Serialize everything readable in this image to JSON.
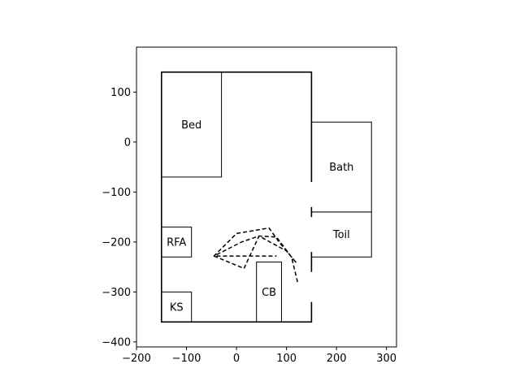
{
  "chart_data": {
    "type": "floor-plan",
    "xlim": [
      -200,
      320
    ],
    "ylim": [
      -410,
      190
    ],
    "x_ticks": [
      -200,
      -100,
      0,
      100,
      200,
      300
    ],
    "y_ticks": [
      -400,
      -300,
      -200,
      -100,
      0,
      100
    ],
    "x_tick_labels": [
      "−200",
      "−100",
      "0",
      "100",
      "200",
      "300"
    ],
    "y_tick_labels": [
      "−400",
      "−300",
      "−200",
      "−100",
      "0",
      "100"
    ],
    "outer_room": {
      "x0": -150,
      "y0": -360,
      "x1": 150,
      "y1": 140
    },
    "door_gaps": [
      {
        "x": 150,
        "y0": -130,
        "y1": -80
      },
      {
        "x": 150,
        "y0": -220,
        "y1": -150
      },
      {
        "x": 150,
        "y0": -320,
        "y1": -260
      }
    ],
    "furniture": [
      {
        "label": "Bed",
        "x0": -150,
        "y0": -70,
        "x1": -30,
        "y1": 140
      },
      {
        "label": "Bath",
        "x0": 150,
        "y0": -140,
        "x1": 270,
        "y1": 40
      },
      {
        "label": "Toil",
        "x0": 150,
        "y0": -230,
        "x1": 270,
        "y1": -140
      },
      {
        "label": "RFA",
        "x0": -150,
        "y0": -230,
        "x1": -90,
        "y1": -170
      },
      {
        "label": "CB",
        "x0": 40,
        "y0": -360,
        "x1": 90,
        "y1": -240
      },
      {
        "label": "KS",
        "x0": -150,
        "y0": -360,
        "x1": -90,
        "y1": -300
      }
    ],
    "path": [
      [
        122,
        -280
      ],
      [
        110,
        -230
      ],
      [
        80,
        -190
      ],
      [
        45,
        -188
      ],
      [
        10,
        -200
      ],
      [
        -45,
        -228
      ],
      [
        0,
        -183
      ],
      [
        65,
        -172
      ],
      [
        85,
        -200
      ],
      [
        120,
        -242
      ],
      [
        100,
        -218
      ],
      [
        45,
        -188
      ],
      [
        15,
        -253
      ],
      [
        -45,
        -228
      ],
      [
        5,
        -228
      ],
      [
        80,
        -228
      ]
    ]
  }
}
